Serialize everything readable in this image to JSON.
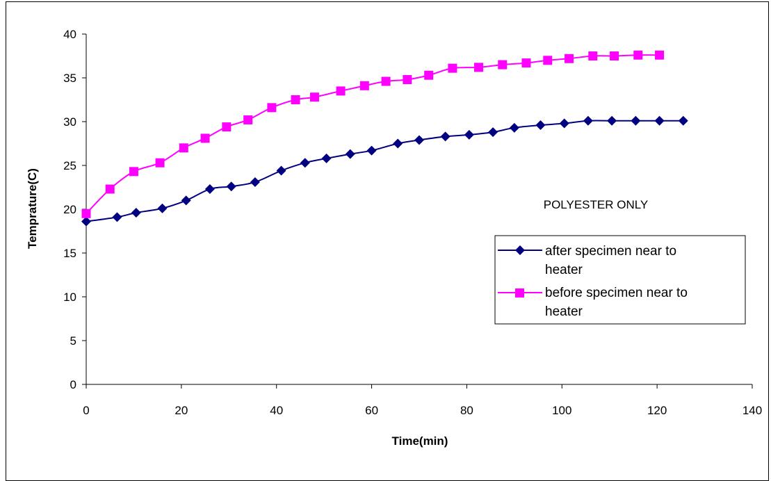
{
  "chart_data": {
    "type": "line",
    "title": "",
    "xlabel": "Time(min)",
    "ylabel": "Temprature(C)",
    "xlim": [
      0,
      140
    ],
    "ylim": [
      0,
      40
    ],
    "x_ticks": [
      0,
      20,
      40,
      60,
      80,
      100,
      120,
      140
    ],
    "y_ticks": [
      0,
      5,
      10,
      15,
      20,
      25,
      30,
      35,
      40
    ],
    "annotation": "POLYESTER ONLY",
    "grid": false,
    "legend_position": "right",
    "series": [
      {
        "name": "after specimen near to heater",
        "color": "#000080",
        "marker": "diamond",
        "x": [
          0,
          6.5,
          10.5,
          16,
          21,
          26,
          30.5,
          35.5,
          41,
          46,
          50.5,
          55.5,
          60,
          65.5,
          70,
          75.5,
          80.5,
          85.5,
          90,
          95.5,
          100.5,
          105.5,
          110.5,
          115.5,
          120.5,
          125.5
        ],
        "y": [
          18.6,
          19.1,
          19.6,
          20.1,
          21.0,
          22.3,
          22.6,
          23.1,
          24.4,
          25.3,
          25.8,
          26.3,
          26.7,
          27.5,
          27.9,
          28.3,
          28.5,
          28.8,
          29.3,
          29.6,
          29.8,
          30.1,
          30.1,
          30.1,
          30.1,
          30.1
        ]
      },
      {
        "name": "before specimen near to heater",
        "color": "#ff00ff",
        "marker": "square",
        "x": [
          0,
          5,
          10,
          15.5,
          20.5,
          25,
          29.5,
          34,
          39,
          44,
          48,
          53.5,
          58.5,
          63,
          67.5,
          72,
          77,
          82.5,
          87.5,
          92.5,
          97,
          101.5,
          106.5,
          111,
          116,
          120.5
        ],
        "y": [
          19.5,
          22.3,
          24.3,
          25.3,
          27.0,
          28.1,
          29.4,
          30.2,
          31.6,
          32.5,
          32.8,
          33.5,
          34.1,
          34.6,
          34.8,
          35.3,
          36.1,
          36.2,
          36.5,
          36.7,
          37.0,
          37.2,
          37.5,
          37.5,
          37.6,
          37.6
        ]
      }
    ]
  }
}
